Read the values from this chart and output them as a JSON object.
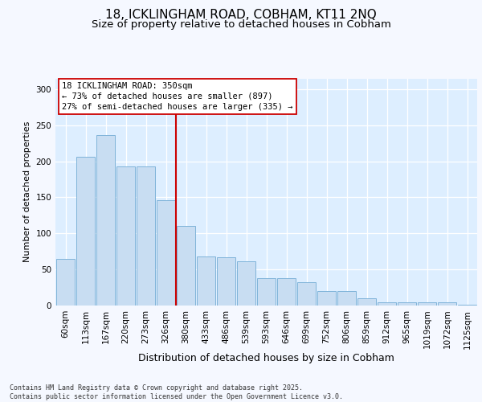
{
  "title_line1": "18, ICKLINGHAM ROAD, COBHAM, KT11 2NQ",
  "title_line2": "Size of property relative to detached houses in Cobham",
  "xlabel": "Distribution of detached houses by size in Cobham",
  "ylabel": "Number of detached properties",
  "categories": [
    "60sqm",
    "113sqm",
    "167sqm",
    "220sqm",
    "273sqm",
    "326sqm",
    "380sqm",
    "433sqm",
    "486sqm",
    "539sqm",
    "593sqm",
    "646sqm",
    "699sqm",
    "752sqm",
    "806sqm",
    "859sqm",
    "912sqm",
    "965sqm",
    "1019sqm",
    "1072sqm",
    "1125sqm"
  ],
  "values": [
    65,
    206,
    236,
    193,
    193,
    146,
    110,
    68,
    67,
    61,
    38,
    38,
    32,
    20,
    20,
    10,
    4,
    4,
    4,
    4,
    1
  ],
  "bar_color": "#c8ddf2",
  "bar_edge_color": "#7fb3d9",
  "vline_x": 5.5,
  "vline_color": "#cc0000",
  "annotation_text": "18 ICKLINGHAM ROAD: 350sqm\n← 73% of detached houses are smaller (897)\n27% of semi-detached houses are larger (335) →",
  "annotation_box_facecolor": "#ffffff",
  "annotation_box_edgecolor": "#cc0000",
  "ylim_max": 315,
  "yticks": [
    0,
    50,
    100,
    150,
    200,
    250,
    300
  ],
  "plot_bg_color": "#ddeeff",
  "fig_bg_color": "#f5f8ff",
  "footer_text": "Contains HM Land Registry data © Crown copyright and database right 2025.\nContains public sector information licensed under the Open Government Licence v3.0.",
  "title_fontsize": 11,
  "subtitle_fontsize": 9.5,
  "ylabel_fontsize": 8,
  "xlabel_fontsize": 9,
  "tick_fontsize": 7.5,
  "annot_fontsize": 7.5,
  "footer_fontsize": 6
}
